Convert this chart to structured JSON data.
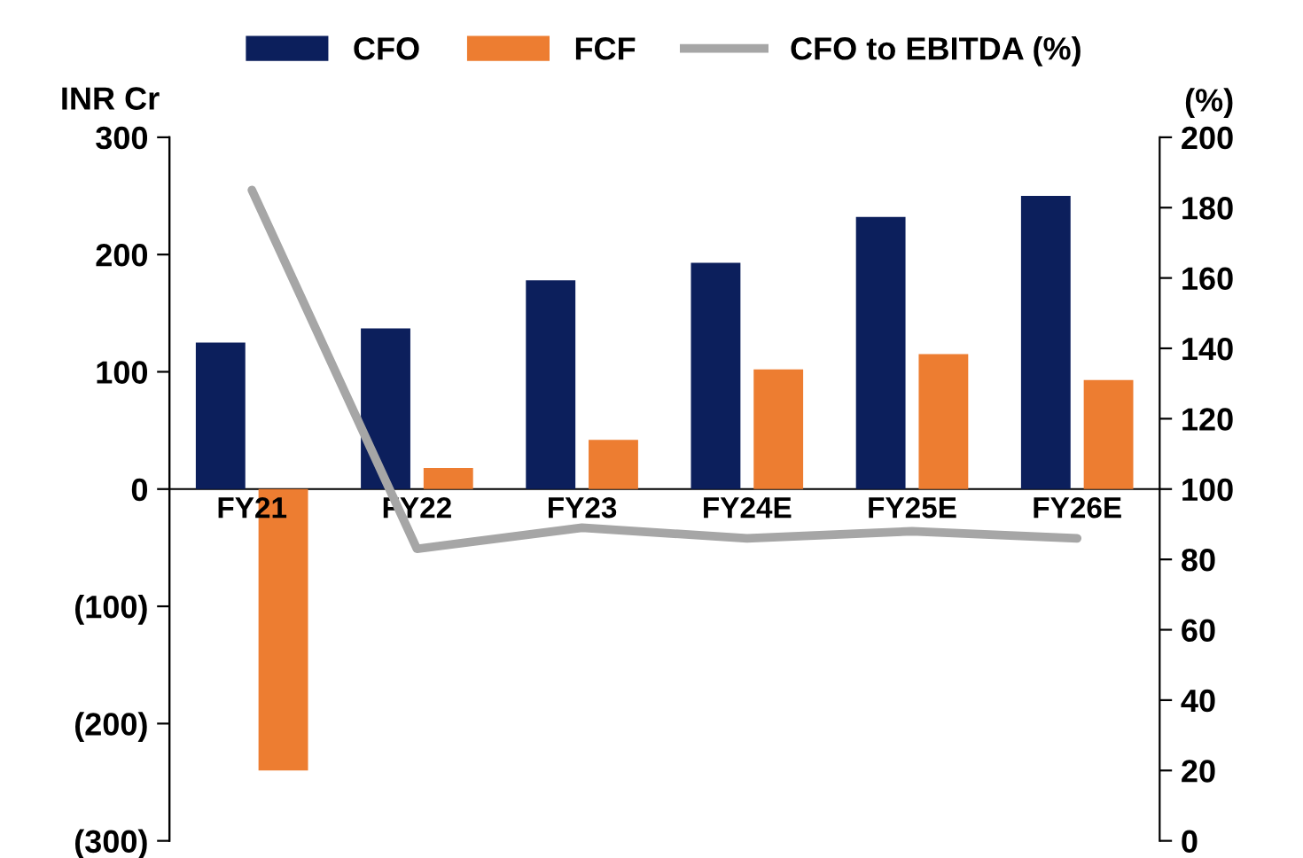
{
  "chart_data": {
    "type": "bar",
    "ylabel": "INR Cr",
    "y2label": "(%)",
    "categories": [
      "FY21",
      "FY22",
      "FY23",
      "FY24E",
      "FY25E",
      "FY26E"
    ],
    "series": [
      {
        "name": "CFO",
        "color": "#0c1f5c",
        "values": [
          125,
          137,
          178,
          193,
          232,
          250
        ]
      },
      {
        "name": "FCF",
        "color": "#ed7d31",
        "values": [
          -240,
          18,
          42,
          102,
          115,
          93
        ]
      },
      {
        "name": "CFO to EBITDA (%)",
        "type": "line",
        "axis": "y2",
        "color": "#a6a6a6",
        "values": [
          185,
          83,
          89,
          86,
          88,
          86
        ]
      }
    ],
    "ylim": [
      -300,
      300
    ],
    "yticks": [
      {
        "value": -300,
        "label": "(300)"
      },
      {
        "value": -200,
        "label": "(200)"
      },
      {
        "value": -100,
        "label": "(100)"
      },
      0,
      100,
      200,
      300
    ],
    "y2lim": [
      0,
      200
    ],
    "y2ticks": [
      0,
      20,
      40,
      60,
      80,
      100,
      120,
      140,
      160,
      180,
      200
    ],
    "grid": false,
    "legend": "top",
    "marker": "none",
    "line_style": "solid"
  }
}
